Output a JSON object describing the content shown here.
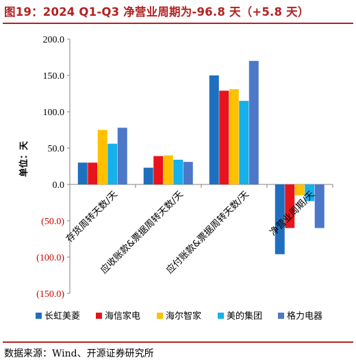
{
  "title": "图19：2024 Q1-Q3 净营业周期为-96.8 天（+5.8 天）",
  "source": "数据来源：Wind、开源证券研究所",
  "chart_data": {
    "type": "bar",
    "ylabel": "单位：天",
    "ylim": [
      -150,
      200
    ],
    "yticks": [
      200,
      150,
      100,
      50,
      0,
      -50,
      -100,
      -150
    ],
    "ytick_labels": [
      "200.0",
      "150.0",
      "100.0",
      "50.0",
      "0.0",
      "(50.0)",
      "(100.0)",
      "(150.0)"
    ],
    "categories": [
      "存货周转天数/天",
      "应收账款&票据周转天数/天",
      "应付账款&票据周转天数/天",
      "净营业周期/天"
    ],
    "series": [
      {
        "name": "长虹美菱",
        "color": "#1F6FBF",
        "values": [
          30,
          23,
          150,
          -96
        ]
      },
      {
        "name": "海信家电",
        "color": "#E8141C",
        "values": [
          30,
          39,
          129,
          -60
        ]
      },
      {
        "name": "海尔智家",
        "color": "#FFC000",
        "values": [
          75,
          40,
          131,
          -15
        ]
      },
      {
        "name": "美的集团",
        "color": "#16B0EA",
        "values": [
          56,
          34,
          115,
          -23
        ]
      },
      {
        "name": "格力电器",
        "color": "#4D78C9",
        "values": [
          78,
          31,
          170,
          -60
        ]
      }
    ],
    "grid": false,
    "legend_position": "bottom"
  }
}
